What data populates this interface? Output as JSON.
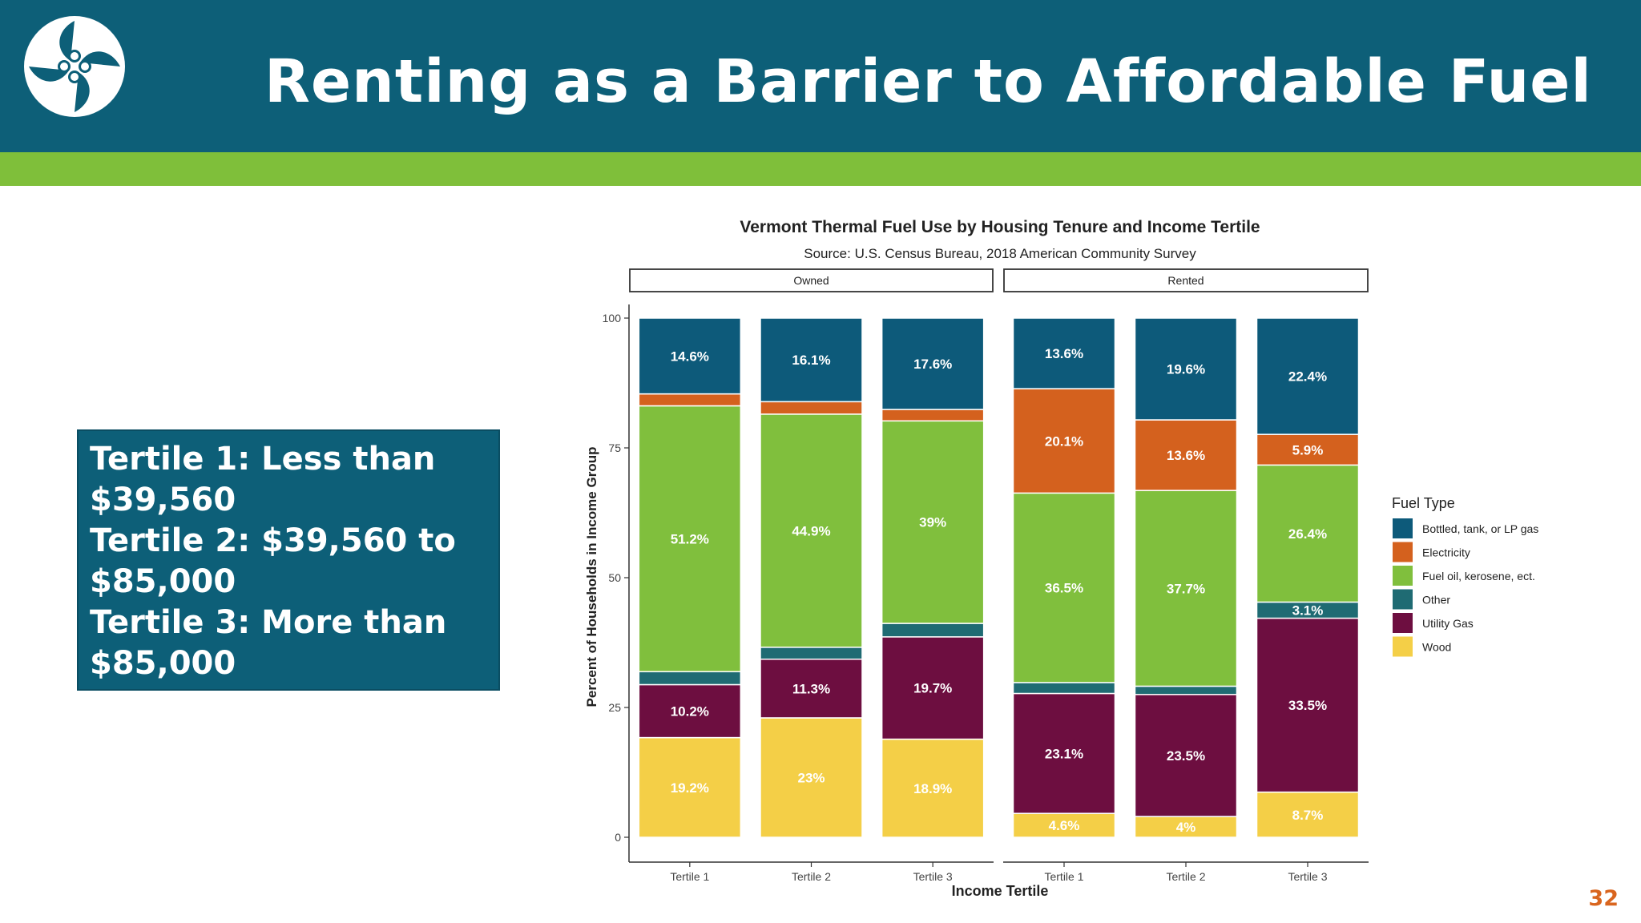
{
  "slide": {
    "title": "Renting as a Barrier to Affordable Fuel",
    "page_number": "32",
    "tertile_lines": [
      "Tertile 1: Less than",
      "$39,560",
      "Tertile 2: $39,560 to",
      "$85,000",
      "Tertile 3: More than",
      "$85,000"
    ],
    "colors": {
      "header": "#0d5f78",
      "accent_band": "#7fbf3a",
      "page_number": "#d9651e"
    }
  },
  "chart_data": {
    "type": "bar",
    "stacked": true,
    "title": "Vermont Thermal Fuel Use by Housing Tenure and Income Tertile",
    "subtitle": "Source: U.S. Census Bureau, 2018 American Community Survey",
    "xlabel": "Income Tertile",
    "ylabel": "Percent of Households in Income Group",
    "ylim": [
      0,
      100
    ],
    "yticks": [
      0,
      25,
      50,
      75,
      100
    ],
    "grid": false,
    "legend": {
      "title": "Fuel Type",
      "placement": "right",
      "entries": [
        "Bottled, tank, or LP gas",
        "Electricity",
        "Fuel oil, kerosene, ect.",
        "Other",
        "Utility Gas",
        "Wood"
      ]
    },
    "panels": [
      {
        "label": "Owned",
        "categories": [
          "Tertile 1",
          "Tertile 2",
          "Tertile 3"
        ],
        "series": [
          {
            "name": "Wood",
            "color": "#f4cf47",
            "values": [
              19.2,
              23,
              18.9
            ],
            "labels": [
              "19.2%",
              "23%",
              "18.9%"
            ]
          },
          {
            "name": "Utility Gas",
            "color": "#6d0e40",
            "values": [
              10.2,
              11.3,
              19.7
            ],
            "labels": [
              "10.2%",
              "11.3%",
              "19.7%"
            ]
          },
          {
            "name": "Other",
            "color": "#1f6b73",
            "values": [
              2.5,
              2.3,
              2.6
            ],
            "labels": [
              "",
              "",
              ""
            ]
          },
          {
            "name": "Fuel oil, kerosene, ect.",
            "color": "#80bf3d",
            "values": [
              51.2,
              44.9,
              39
            ],
            "labels": [
              "51.2%",
              "44.9%",
              "39%"
            ]
          },
          {
            "name": "Electricity",
            "color": "#d4611e",
            "values": [
              2.3,
              2.4,
              2.2
            ],
            "labels": [
              "",
              "",
              ""
            ]
          },
          {
            "name": "Bottled, tank, or LP gas",
            "color": "#0d5a7a",
            "values": [
              14.6,
              16.1,
              17.6
            ],
            "labels": [
              "14.6%",
              "16.1%",
              "17.6%"
            ]
          }
        ]
      },
      {
        "label": "Rented",
        "categories": [
          "Tertile 1",
          "Tertile 2",
          "Tertile 3"
        ],
        "series": [
          {
            "name": "Wood",
            "color": "#f4cf47",
            "values": [
              4.6,
              4,
              8.7
            ],
            "labels": [
              "4.6%",
              "4%",
              "8.7%"
            ]
          },
          {
            "name": "Utility Gas",
            "color": "#6d0e40",
            "values": [
              23.1,
              23.5,
              33.5
            ],
            "labels": [
              "23.1%",
              "23.5%",
              "33.5%"
            ]
          },
          {
            "name": "Other",
            "color": "#1f6b73",
            "values": [
              2.1,
              1.6,
              3.1
            ],
            "labels": [
              "",
              "",
              "3.1%"
            ]
          },
          {
            "name": "Fuel oil, kerosene, ect.",
            "color": "#80bf3d",
            "values": [
              36.5,
              37.7,
              26.4
            ],
            "labels": [
              "36.5%",
              "37.7%",
              "26.4%"
            ]
          },
          {
            "name": "Electricity",
            "color": "#d4611e",
            "values": [
              20.1,
              13.6,
              5.9
            ],
            "labels": [
              "20.1%",
              "13.6%",
              "5.9%"
            ]
          },
          {
            "name": "Bottled, tank, or LP gas",
            "color": "#0d5a7a",
            "values": [
              13.6,
              19.6,
              22.4
            ],
            "labels": [
              "13.6%",
              "19.6%",
              "22.4%"
            ]
          }
        ]
      }
    ]
  }
}
